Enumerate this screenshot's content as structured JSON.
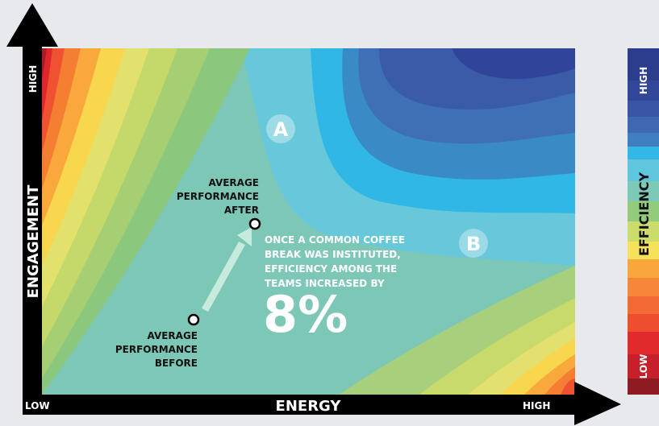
{
  "y_axis": {
    "label": "ENGAGEMENT",
    "high": "HIGH"
  },
  "x_axis": {
    "low": "LOW",
    "label": "ENERGY",
    "high": "HIGH"
  },
  "legend": {
    "title": "EFFICIENCY",
    "high": "HIGH",
    "low": "LOW"
  },
  "markers": {
    "a": "A",
    "b": "B"
  },
  "after_label": [
    "AVERAGE",
    "PERFORMANCE",
    "AFTER"
  ],
  "before_label": [
    "AVERAGE",
    "PERFORMANCE",
    "BEFORE"
  ],
  "annotation": {
    "lines": [
      "ONCE A COMMON COFFEE",
      "BREAK WAS INSTITUTED,",
      "EFFICIENCY AMONG THE",
      "TEAMS INCREASED BY"
    ],
    "figure": "8%"
  }
}
